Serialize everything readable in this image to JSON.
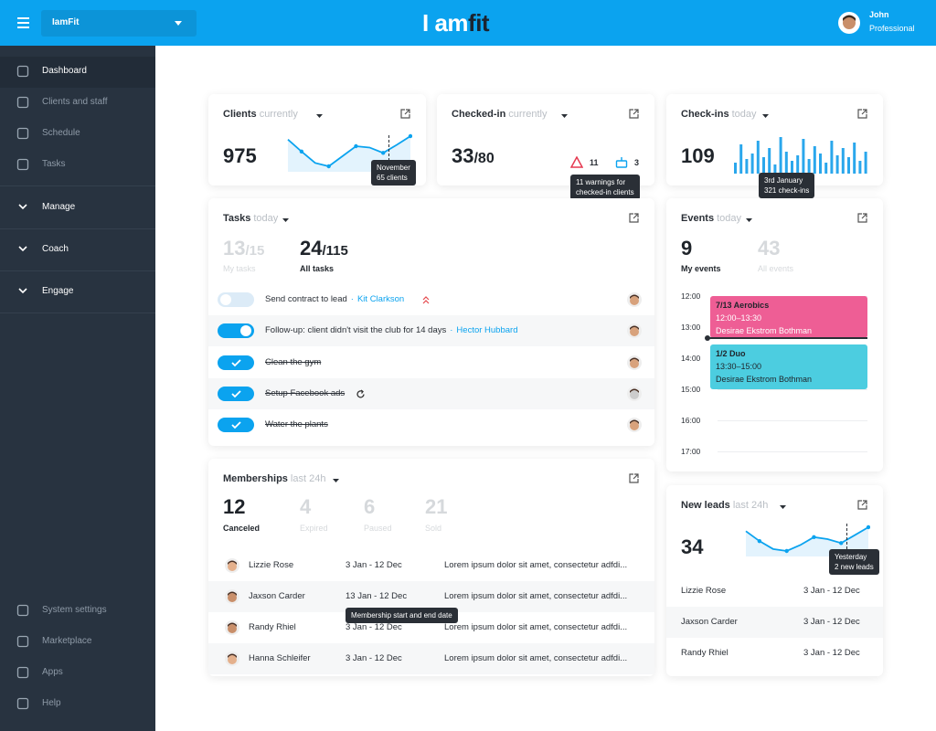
{
  "header": {
    "app_select": "IamFit",
    "logo": {
      "light": "I am",
      "bold": "fit"
    },
    "user": {
      "name": "John",
      "role": "Professional"
    }
  },
  "sidebar": {
    "nav": [
      "Dashboard",
      "Clients and staff",
      "Schedule",
      "Tasks"
    ],
    "groups": [
      "Manage",
      "Coach",
      "Engage"
    ],
    "bottom": [
      "System settings",
      "Marketplace",
      "Apps",
      "Help"
    ]
  },
  "clients": {
    "title": "Clients",
    "period": "currently",
    "value": 975,
    "trend": [
      80,
      62,
      45,
      40,
      55,
      70,
      68,
      60,
      72,
      85
    ],
    "tooltip": [
      "November",
      "65 clients"
    ]
  },
  "checked_in": {
    "title": "Checked-in",
    "period": "currently",
    "value": 33,
    "capacity": "/80",
    "warnings": 11,
    "birthdays": 3,
    "tooltip": [
      "11 warnings for",
      "checked-in clients"
    ]
  },
  "check_ins": {
    "title": "Check-ins",
    "period": "today",
    "value": 109,
    "bars": [
      30,
      80,
      40,
      55,
      90,
      45,
      70,
      25,
      100,
      60,
      35,
      50,
      95,
      40,
      75,
      55,
      30,
      90,
      50,
      70,
      45,
      85,
      35,
      60
    ],
    "tooltip": [
      "3rd January",
      "321 check-ins"
    ]
  },
  "tasks": {
    "title": "Tasks",
    "period": "today",
    "stats": [
      {
        "value": 13,
        "total": "/15",
        "label": "My tasks"
      },
      {
        "value": 24,
        "total": "/115",
        "label": "All tasks"
      }
    ],
    "items": [
      {
        "text": "Send contract to lead",
        "assignee": "Kit Clarkson",
        "state": "off"
      },
      {
        "text": "Follow-up: client didn't visit the club for 14 days",
        "assignee": "Hector Hubbard",
        "state": "on"
      },
      {
        "text": "Clean the gym",
        "state": "done"
      },
      {
        "text": "Setup Facebook ads",
        "state": "done"
      },
      {
        "text": "Water the plants",
        "state": "done"
      }
    ]
  },
  "events": {
    "title": "Events",
    "period": "today",
    "stats": [
      {
        "value": 9,
        "label": "My events"
      },
      {
        "value": 43,
        "label": "All events"
      }
    ],
    "times": [
      "12:00",
      "13:00",
      "14:00",
      "15:00",
      "16:00",
      "17:00"
    ],
    "items": [
      {
        "name": "7/13 Aerobics",
        "time": "12:00–13:30",
        "trainer": "Desirae Ekstrom Bothman",
        "color": "#ee5e95"
      },
      {
        "name": "1/2 Duo",
        "time": "13:30–15:00",
        "trainer": "Desirae Ekstrom Bothman",
        "color": "#4ccde0"
      }
    ]
  },
  "memberships": {
    "title": "Memberships",
    "period": "last 24h",
    "stats": [
      {
        "value": 12,
        "label": "Canceled"
      },
      {
        "value": 4,
        "label": "Expired"
      },
      {
        "value": 6,
        "label": "Paused"
      },
      {
        "value": 21,
        "label": "Sold"
      }
    ],
    "rows": [
      {
        "name": "Lizzie Rose",
        "dates": "3 Jan - 12 Dec",
        "note": "Lorem ipsum dolor sit amet, consectetur adfdi..."
      },
      {
        "name": "Jaxson Carder",
        "dates": "13 Jan - 12 Dec",
        "note": "Lorem ipsum dolor sit amet, consectetur adfdi..."
      },
      {
        "name": "Randy Rhiel",
        "dates": "3 Jan - 12 Dec",
        "note": "Lorem ipsum dolor sit amet, consectetur adfdi..."
      },
      {
        "name": "Hanna Schleifer",
        "dates": "3 Jan - 12 Dec",
        "note": "Lorem ipsum dolor sit amet, consectetur adfdi..."
      }
    ],
    "tooltip": "Membership start and end date"
  },
  "new_leads": {
    "title": "New leads",
    "period": "last 24h",
    "value": 34,
    "trend": [
      75,
      50,
      30,
      25,
      40,
      60,
      55,
      45,
      65,
      85
    ],
    "tooltip": [
      "Yesterday",
      "2 new leads"
    ],
    "rows": [
      {
        "name": "Lizzie Rose",
        "dates": "3 Jan - 12 Dec"
      },
      {
        "name": "Jaxson Carder",
        "dates": "3 Jan - 12 Dec"
      },
      {
        "name": "Randy Rhiel",
        "dates": "3 Jan - 12 Dec"
      }
    ]
  }
}
